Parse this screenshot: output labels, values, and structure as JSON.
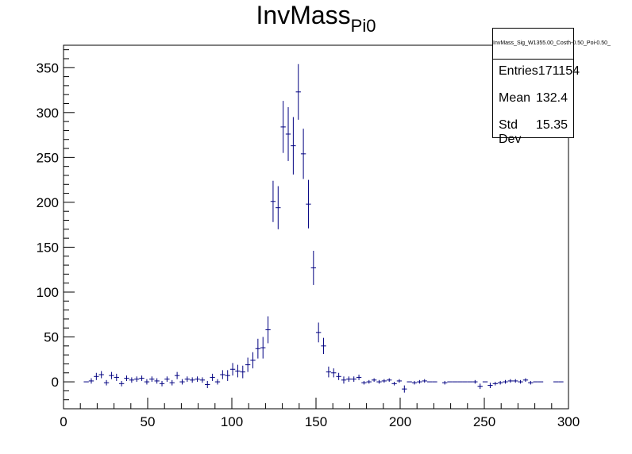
{
  "chart_data": {
    "type": "scatter",
    "title": "InvMass",
    "title_subscript": "Pi0",
    "xlim": [
      0,
      300
    ],
    "ylim": [
      -30,
      375
    ],
    "x_ticks": [
      0,
      50,
      100,
      150,
      200,
      250,
      300
    ],
    "y_ticks": [
      0,
      50,
      100,
      150,
      200,
      250,
      300,
      350
    ],
    "x_ticks_labels": [
      "0",
      "50",
      "100",
      "150",
      "200",
      "250",
      "300"
    ],
    "y_ticks_labels": [
      "0",
      "50",
      "100",
      "150",
      "200",
      "250",
      "300",
      "350"
    ],
    "grid": false,
    "marker_color": "#000080",
    "bin_width": 3,
    "points": [
      {
        "x": 13.5,
        "y": 0,
        "err": 0
      },
      {
        "x": 16.5,
        "y": 1,
        "err": 3
      },
      {
        "x": 19.5,
        "y": 6,
        "err": 4
      },
      {
        "x": 22.5,
        "y": 8,
        "err": 4
      },
      {
        "x": 25.5,
        "y": -1,
        "err": 3
      },
      {
        "x": 28.5,
        "y": 7,
        "err": 4
      },
      {
        "x": 31.5,
        "y": 5,
        "err": 4
      },
      {
        "x": 34.5,
        "y": -2,
        "err": 3
      },
      {
        "x": 37.5,
        "y": 4,
        "err": 3
      },
      {
        "x": 40.5,
        "y": 2,
        "err": 3
      },
      {
        "x": 43.5,
        "y": 3,
        "err": 3
      },
      {
        "x": 46.5,
        "y": 4,
        "err": 3
      },
      {
        "x": 49.5,
        "y": 0,
        "err": 3
      },
      {
        "x": 52.5,
        "y": 3,
        "err": 3
      },
      {
        "x": 55.5,
        "y": 1,
        "err": 3
      },
      {
        "x": 58.5,
        "y": -2,
        "err": 3
      },
      {
        "x": 61.5,
        "y": 3,
        "err": 3
      },
      {
        "x": 64.5,
        "y": -1,
        "err": 3
      },
      {
        "x": 67.5,
        "y": 7,
        "err": 4
      },
      {
        "x": 70.5,
        "y": 0,
        "err": 3
      },
      {
        "x": 73.5,
        "y": 3,
        "err": 3
      },
      {
        "x": 76.5,
        "y": 2,
        "err": 3
      },
      {
        "x": 79.5,
        "y": 3,
        "err": 3
      },
      {
        "x": 82.5,
        "y": 2,
        "err": 3
      },
      {
        "x": 85.5,
        "y": -3,
        "err": 4
      },
      {
        "x": 88.5,
        "y": 5,
        "err": 4
      },
      {
        "x": 91.5,
        "y": 0,
        "err": 3
      },
      {
        "x": 94.5,
        "y": 8,
        "err": 5
      },
      {
        "x": 97.5,
        "y": 7,
        "err": 6
      },
      {
        "x": 100.5,
        "y": 14,
        "err": 7
      },
      {
        "x": 103.5,
        "y": 12,
        "err": 7
      },
      {
        "x": 106.5,
        "y": 11,
        "err": 7
      },
      {
        "x": 109.5,
        "y": 19,
        "err": 8
      },
      {
        "x": 112.5,
        "y": 24,
        "err": 9
      },
      {
        "x": 115.5,
        "y": 37,
        "err": 11
      },
      {
        "x": 118.5,
        "y": 38,
        "err": 12
      },
      {
        "x": 121.5,
        "y": 58,
        "err": 15
      },
      {
        "x": 124.5,
        "y": 201,
        "err": 23
      },
      {
        "x": 127.5,
        "y": 194,
        "err": 24
      },
      {
        "x": 130.5,
        "y": 284,
        "err": 29
      },
      {
        "x": 133.5,
        "y": 276,
        "err": 30
      },
      {
        "x": 136.5,
        "y": 263,
        "err": 32
      },
      {
        "x": 139.5,
        "y": 323,
        "err": 31
      },
      {
        "x": 142.5,
        "y": 254,
        "err": 28
      },
      {
        "x": 145.5,
        "y": 198,
        "err": 27
      },
      {
        "x": 148.5,
        "y": 127,
        "err": 19
      },
      {
        "x": 151.5,
        "y": 55,
        "err": 11
      },
      {
        "x": 154.5,
        "y": 40,
        "err": 9
      },
      {
        "x": 157.5,
        "y": 11,
        "err": 6
      },
      {
        "x": 160.5,
        "y": 10,
        "err": 5
      },
      {
        "x": 163.5,
        "y": 6,
        "err": 4
      },
      {
        "x": 166.5,
        "y": 2,
        "err": 4
      },
      {
        "x": 169.5,
        "y": 3,
        "err": 3
      },
      {
        "x": 172.5,
        "y": 3,
        "err": 3
      },
      {
        "x": 175.5,
        "y": 5,
        "err": 3
      },
      {
        "x": 178.5,
        "y": -1,
        "err": 2
      },
      {
        "x": 181.5,
        "y": 0,
        "err": 2
      },
      {
        "x": 184.5,
        "y": 2,
        "err": 2
      },
      {
        "x": 187.5,
        "y": 0,
        "err": 2
      },
      {
        "x": 190.5,
        "y": 1,
        "err": 2
      },
      {
        "x": 193.5,
        "y": 2,
        "err": 2
      },
      {
        "x": 196.5,
        "y": -2,
        "err": 2
      },
      {
        "x": 199.5,
        "y": 1,
        "err": 2
      },
      {
        "x": 202.5,
        "y": -8,
        "err": 4
      },
      {
        "x": 205.5,
        "y": 0,
        "err": 0
      },
      {
        "x": 208.5,
        "y": -1,
        "err": 2
      },
      {
        "x": 211.5,
        "y": 0,
        "err": 2
      },
      {
        "x": 214.5,
        "y": 1,
        "err": 2
      },
      {
        "x": 217.5,
        "y": 0,
        "err": 0
      },
      {
        "x": 220.5,
        "y": 0,
        "err": 0
      },
      {
        "x": 226.5,
        "y": -1,
        "err": 2
      },
      {
        "x": 229.5,
        "y": 0,
        "err": 0
      },
      {
        "x": 232.5,
        "y": 0,
        "err": 0
      },
      {
        "x": 235.5,
        "y": 0,
        "err": 0
      },
      {
        "x": 238.5,
        "y": 0,
        "err": 0
      },
      {
        "x": 241.5,
        "y": 0,
        "err": 0
      },
      {
        "x": 244.5,
        "y": 0,
        "err": 2
      },
      {
        "x": 247.5,
        "y": -5,
        "err": 3
      },
      {
        "x": 250.5,
        "y": 0,
        "err": 0
      },
      {
        "x": 253.5,
        "y": -4,
        "err": 3
      },
      {
        "x": 256.5,
        "y": -2,
        "err": 2
      },
      {
        "x": 259.5,
        "y": -1,
        "err": 2
      },
      {
        "x": 262.5,
        "y": 0,
        "err": 2
      },
      {
        "x": 265.5,
        "y": 1,
        "err": 2
      },
      {
        "x": 268.5,
        "y": 1,
        "err": 2
      },
      {
        "x": 271.5,
        "y": 0,
        "err": 2
      },
      {
        "x": 274.5,
        "y": 2,
        "err": 2
      },
      {
        "x": 277.5,
        "y": -1,
        "err": 2
      },
      {
        "x": 280.5,
        "y": 0,
        "err": 0
      },
      {
        "x": 283.5,
        "y": 0,
        "err": 0
      },
      {
        "x": 292.5,
        "y": 0,
        "err": 0
      },
      {
        "x": 295.5,
        "y": 0,
        "err": 0
      }
    ]
  },
  "stats": {
    "name": "InvMass_Sig_W1355.00_Costh-0.50_Poi-0.50_",
    "entries_label": "Entries",
    "entries_value": "171154",
    "mean_label": "Mean",
    "mean_value": "132.4",
    "stddev_label": "Std Dev",
    "stddev_value": "15.35"
  }
}
